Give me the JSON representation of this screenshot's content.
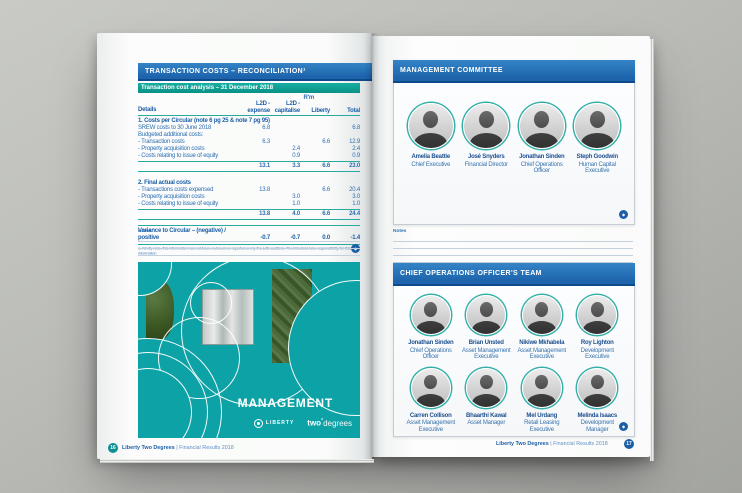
{
  "icons": {
    "diamond": "◆"
  },
  "left_page": {
    "header": "TRANSACTION COSTS – RECONCILIATION¹",
    "notes_label": "Notes",
    "table": {
      "title": "Transaction cost analysis – 31 December 2018",
      "unit": "R'm",
      "col_details": "Details",
      "col_expense": "L2D - expense",
      "col_capitalise": "L2D - capitalise",
      "col_liberty": "Liberty",
      "col_total": "Total",
      "s1_heading": "1. Costs per Circular (note 6 pg 25 & note 7 pg 95)",
      "s1_rows": [
        {
          "label": "SREW costs to 30 June 2018",
          "expense": "6.8",
          "capitalise": "",
          "liberty": "",
          "total": "6.8"
        },
        {
          "label": "Budgeted additional costs:",
          "expense": "",
          "capitalise": "",
          "liberty": "",
          "total": ""
        },
        {
          "label": "- Transaction costs",
          "expense": "6.3",
          "capitalise": "",
          "liberty": "6.6",
          "total": "12.9"
        },
        {
          "label": "- Property acquisition costs",
          "expense": "",
          "capitalise": "2.4",
          "liberty": "",
          "total": "2.4"
        },
        {
          "label": "- Costs relating to issue of equity",
          "expense": "",
          "capitalise": "0.9",
          "liberty": "",
          "total": "0.9"
        }
      ],
      "s1_total": {
        "expense": "13.1",
        "capitalise": "3.3",
        "liberty": "6.6",
        "total": "23.0"
      },
      "s2_heading": "2. Final actual costs",
      "s2_rows": [
        {
          "label": "- Transactions costs expensed",
          "expense": "13.8",
          "capitalise": "",
          "liberty": "6.6",
          "total": "20.4"
        },
        {
          "label": "- Property acquisition costs",
          "expense": "",
          "capitalise": "3.0",
          "liberty": "",
          "total": "3.0"
        },
        {
          "label": "- Costs relating to issue of equity",
          "expense": "",
          "capitalise": "1.0",
          "liberty": "",
          "total": "1.0"
        }
      ],
      "s2_total": {
        "expense": "13.8",
        "capitalise": "4.0",
        "liberty": "6.6",
        "total": "24.4"
      },
      "variance_label": "Variance to Circular – (negative) / positive",
      "variance": {
        "expense": "-0.7",
        "capitalise": "-0.7",
        "liberty": "0.0",
        "total": "-1.4"
      },
      "footnote": "1.  Kindly note, this information has not been reviewed or reported on by the L2D auditors. The Directors take responsibility for this information"
    },
    "cover": {
      "title": "MANAGEMENT",
      "liberty_logo": "LIBERTY",
      "two_bold": "two",
      "degree_symbol": "°",
      "two_light": "degrees"
    },
    "footer": {
      "page_number": "16",
      "brand": "Liberty Two Degrees",
      "divider": "|",
      "subtitle": "Financial Results 2018"
    }
  },
  "right_page": {
    "notes_label": "Notes",
    "committee": {
      "header": "MANAGEMENT COMMITTEE",
      "members": [
        {
          "name": "Amelia Beattie",
          "title": "Chief Executive"
        },
        {
          "name": "José Snyders",
          "title": "Financial Director"
        },
        {
          "name": "Jonathan Sinden",
          "title": "Chief Operations Officer"
        },
        {
          "name": "Steph Goodwin",
          "title": "Human Capital Executive"
        }
      ]
    },
    "team": {
      "header": "CHIEF OPERATIONS OFFICER'S TEAM",
      "members": [
        {
          "name": "Jonathan Sinden",
          "title": "Chief Operations Officer"
        },
        {
          "name": "Brian Unsted",
          "title": "Asset Management Executive"
        },
        {
          "name": "Nikiwe Mkhabela",
          "title": "Asset Management Executive"
        },
        {
          "name": "Roy Lighton",
          "title": "Development Executive"
        },
        {
          "name": "Carren Collison",
          "title": "Asset Management Executive"
        },
        {
          "name": "Bhaarthi Kawal",
          "title": "Asset Manager"
        },
        {
          "name": "Mel Urdang",
          "title": "Retail Leasing Executive"
        },
        {
          "name": "Melinda Isaacs",
          "title": "Development Manager"
        }
      ]
    },
    "footer": {
      "page_number": "17",
      "brand": "Liberty Two Degrees",
      "divider": "|",
      "subtitle": "Financial Results 2018"
    }
  }
}
